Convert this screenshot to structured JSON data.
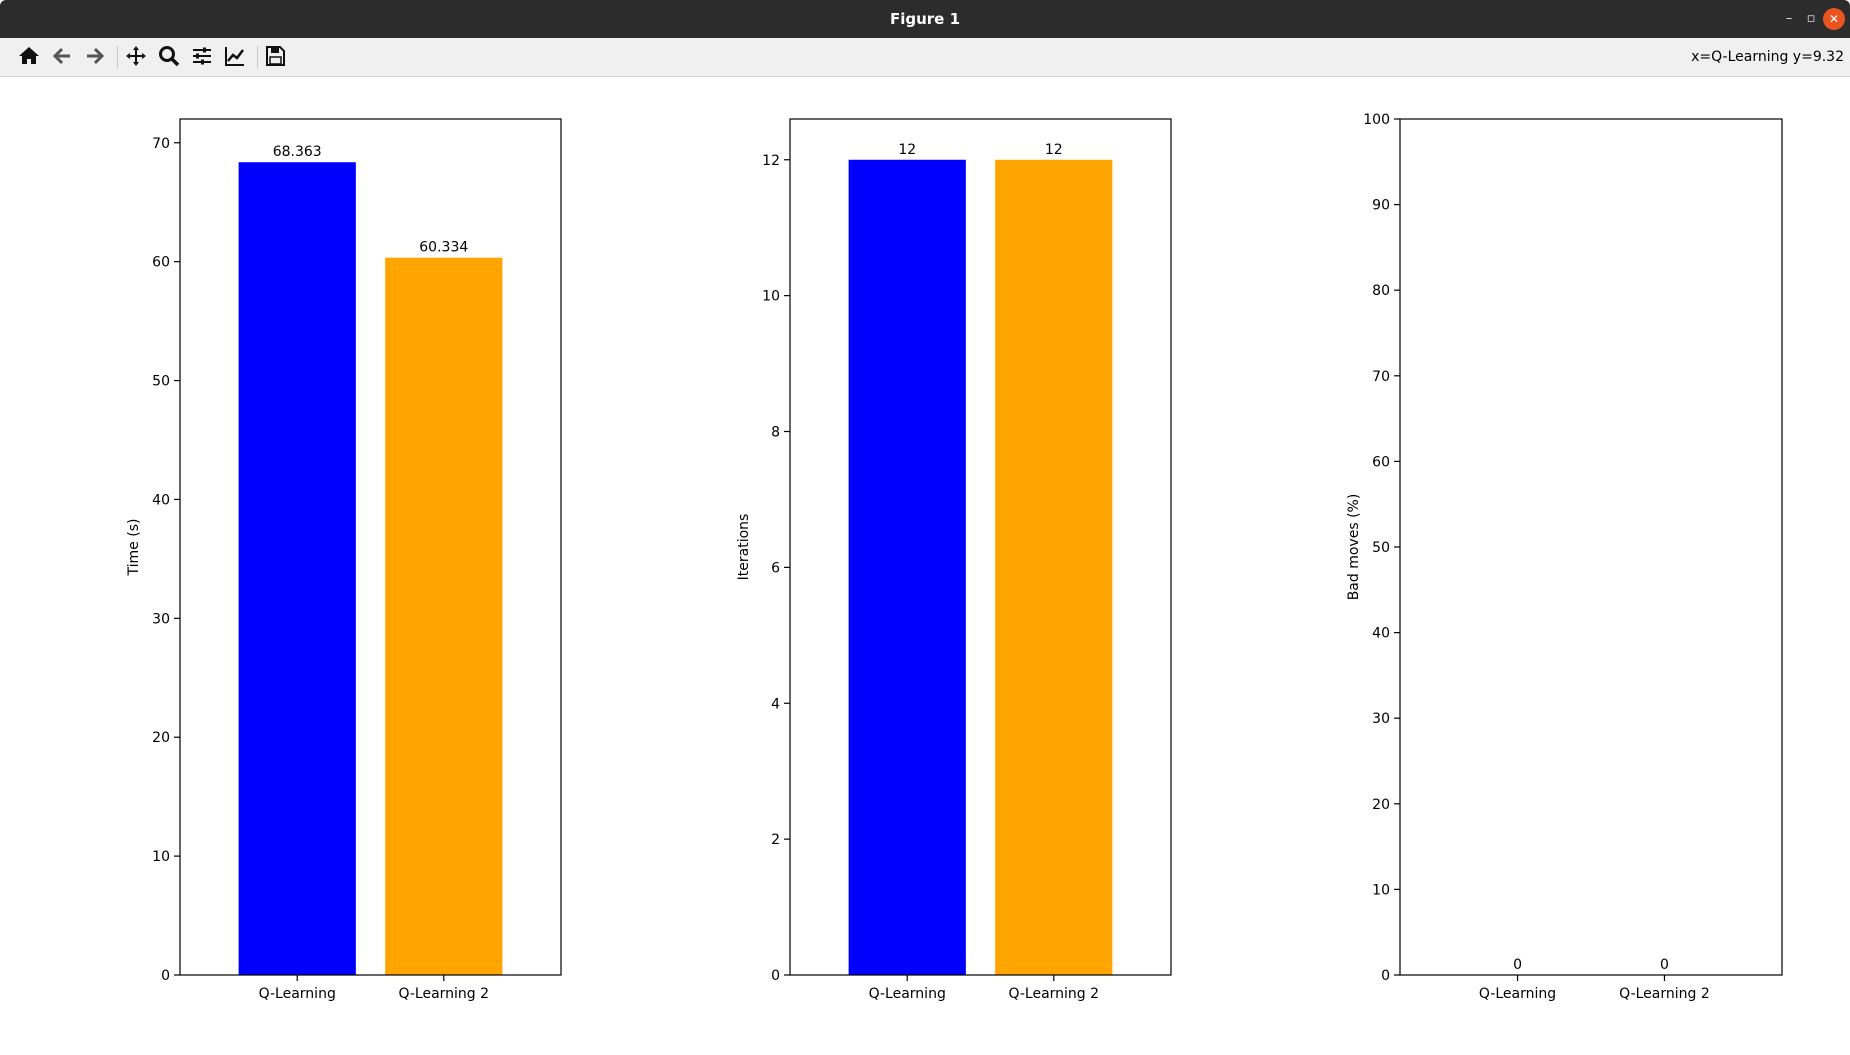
{
  "window": {
    "title": "Figure 1",
    "minimize": "–",
    "restore": "▫",
    "close": "✕"
  },
  "toolbar": {
    "buttons": [
      {
        "name": "home-button",
        "icon": "home-icon"
      },
      {
        "name": "back-button",
        "icon": "arrow-left-icon"
      },
      {
        "name": "forward-button",
        "icon": "arrow-right-icon"
      },
      {
        "name": "pan-button",
        "icon": "move-icon"
      },
      {
        "name": "zoom-button",
        "icon": "magnifier-icon"
      },
      {
        "name": "configure-subplots-button",
        "icon": "sliders-icon"
      },
      {
        "name": "edit-axis-button",
        "icon": "line-chart-icon"
      },
      {
        "name": "save-button",
        "icon": "floppy-disk-icon"
      }
    ],
    "coordinates": "x=Q-Learning y=9.32"
  },
  "chart_data": [
    {
      "type": "bar",
      "categories": [
        "Q-Learning",
        "Q-Learning 2"
      ],
      "values": [
        68.363,
        60.334
      ],
      "value_labels": [
        "68.363",
        "60.334"
      ],
      "colors": [
        "#0000ff",
        "#ffa500"
      ],
      "ylabel": "Time (s)",
      "ylim": [
        0,
        72
      ],
      "yticks": [
        0,
        10,
        20,
        30,
        40,
        50,
        60,
        70
      ],
      "grid": false
    },
    {
      "type": "bar",
      "categories": [
        "Q-Learning",
        "Q-Learning 2"
      ],
      "values": [
        12,
        12
      ],
      "value_labels": [
        "12",
        "12"
      ],
      "colors": [
        "#0000ff",
        "#ffa500"
      ],
      "ylabel": "Iterations",
      "ylim": [
        0,
        12.6
      ],
      "yticks": [
        0,
        2,
        4,
        6,
        8,
        10,
        12
      ],
      "grid": false
    },
    {
      "type": "bar",
      "categories": [
        "Q-Learning",
        "Q-Learning 2"
      ],
      "values": [
        0,
        0
      ],
      "value_labels": [
        "0",
        "0"
      ],
      "colors": [
        "#0000ff",
        "#ffa500"
      ],
      "ylabel": "Bad moves (%)",
      "ylim": [
        0,
        100
      ],
      "yticks": [
        0,
        10,
        20,
        30,
        40,
        50,
        60,
        70,
        80,
        90,
        100
      ],
      "grid": false
    }
  ]
}
